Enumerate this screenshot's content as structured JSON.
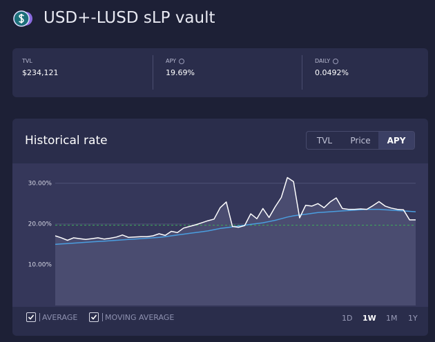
{
  "header": {
    "title": "USD+-LUSD sLP vault"
  },
  "stats": [
    {
      "label": "TVL",
      "value": "$234,121",
      "info": false
    },
    {
      "label": "APY",
      "value": "19.69%",
      "info": true
    },
    {
      "label": "DAILY",
      "value": "0.0492%",
      "info": true
    }
  ],
  "panel": {
    "title": "Historical rate",
    "tabs": [
      {
        "label": "TVL",
        "active": false
      },
      {
        "label": "Price",
        "active": false
      },
      {
        "label": "APY",
        "active": true
      }
    ],
    "toggles": [
      {
        "label": "AVERAGE",
        "checked": true
      },
      {
        "label": "MOVING AVERAGE",
        "checked": true
      }
    ],
    "ranges": [
      {
        "label": "1D",
        "active": false
      },
      {
        "label": "1W",
        "active": true
      },
      {
        "label": "1M",
        "active": false
      },
      {
        "label": "1Y",
        "active": false
      }
    ]
  },
  "chart_data": {
    "type": "line",
    "categories": [
      null,
      null,
      null,
      null,
      null,
      null,
      null,
      null,
      null,
      null,
      null,
      null,
      null,
      null,
      null,
      null,
      null,
      null,
      null,
      null,
      null,
      null,
      null,
      null,
      null,
      null,
      null,
      null,
      null,
      null,
      null,
      null,
      null,
      null,
      null,
      null,
      null,
      null,
      null,
      null,
      null,
      null,
      null,
      null,
      null,
      null,
      null,
      null,
      null,
      null,
      null,
      null,
      null,
      null,
      null,
      null,
      null,
      null,
      null,
      null
    ],
    "series": [
      {
        "color": "#ffffff",
        "area": "#4a4c70",
        "values": [
          17.1,
          16.6,
          16.0,
          16.6,
          16.4,
          16.2,
          16.4,
          16.6,
          16.3,
          16.5,
          16.8,
          17.3,
          16.7,
          16.8,
          16.9,
          16.9,
          17.1,
          17.6,
          17.2,
          18.2,
          17.9,
          19.0,
          19.4,
          19.8,
          20.3,
          20.8,
          21.2,
          24.0,
          25.4,
          19.4,
          19.2,
          19.6,
          22.5,
          21.3,
          23.8,
          21.6,
          24.2,
          26.5,
          31.4,
          30.4,
          21.5,
          24.6,
          24.4,
          25.0,
          24.0,
          25.4,
          26.4,
          23.8,
          23.6,
          23.6,
          23.7,
          23.6,
          24.5,
          25.5,
          24.4,
          23.9,
          23.6,
          23.5,
          21.0,
          21.0
        ]
      },
      {
        "name": "MOVING AVERAGE",
        "color": "#4a9ee0",
        "values": [
          15.0,
          15.1,
          15.2,
          15.3,
          15.4,
          15.5,
          15.6,
          15.7,
          15.8,
          15.9,
          16.0,
          16.1,
          16.2,
          16.3,
          16.4,
          16.5,
          16.6,
          16.7,
          16.9,
          17.1,
          17.3,
          17.5,
          17.7,
          17.9,
          18.1,
          18.3,
          18.6,
          18.9,
          19.1,
          19.3,
          19.5,
          19.7,
          19.9,
          20.1,
          20.3,
          20.6,
          20.9,
          21.3,
          21.7,
          22.0,
          22.2,
          22.4,
          22.6,
          22.8,
          22.9,
          23.0,
          23.1,
          23.2,
          23.3,
          23.4,
          23.5,
          23.6,
          23.6,
          23.6,
          23.5,
          23.4,
          23.3,
          23.2,
          23.1,
          23.0
        ]
      }
    ],
    "average": {
      "name": "AVERAGE",
      "value": 19.7,
      "color": "#3fae5a"
    },
    "ylim": [
      0,
      32.5
    ],
    "yticks": [
      {
        "value": 10,
        "label": "10.00%"
      },
      {
        "value": 20,
        "label": "20.00%"
      },
      {
        "value": 30,
        "label": "30.00%"
      }
    ],
    "grid": true
  }
}
